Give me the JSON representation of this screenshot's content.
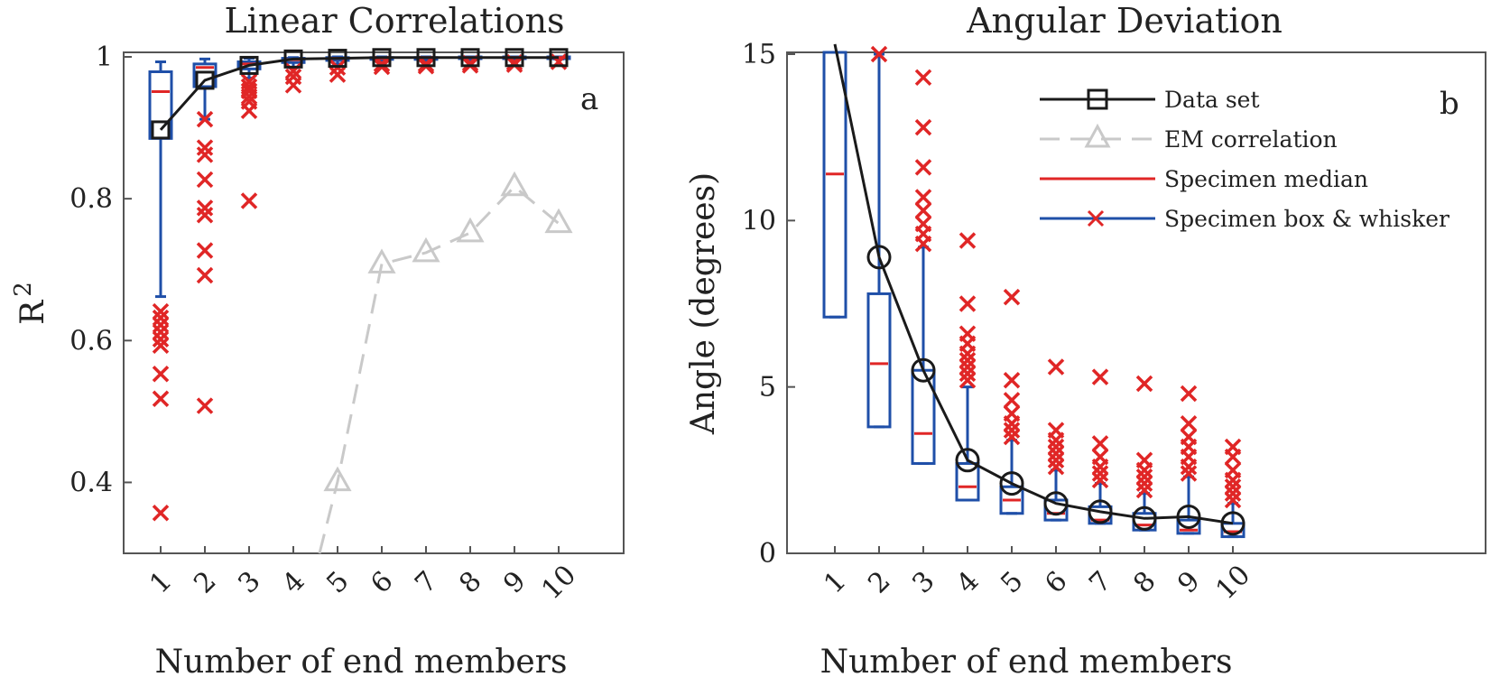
{
  "figure_title": "Linear Correlations / Angular Deviation",
  "chart_data": [
    {
      "type": "box",
      "panel": "a",
      "title": "Linear Correlations",
      "xlabel": "Number of end members",
      "ylabel": "R",
      "ylabel_sup": "2",
      "ylim": [
        0.3,
        1.0
      ],
      "yticks": [
        0.4,
        0.6,
        0.8,
        1
      ],
      "ytick_labels": [
        "0.4",
        "0.6",
        "0.8",
        "1"
      ],
      "categories": [
        "1",
        "2",
        "3",
        "4",
        "5",
        "6",
        "7",
        "8",
        "9",
        "10"
      ],
      "series": [
        {
          "name": "Data set",
          "values": [
            0.897,
            0.967,
            0.988,
            0.997,
            0.998,
            0.999,
            0.999,
            0.999,
            0.999,
            0.999
          ]
        },
        {
          "name": "EM correlation",
          "values": [
            null,
            null,
            null,
            null,
            0.401,
            0.708,
            0.724,
            0.752,
            0.817,
            0.765
          ]
        }
      ],
      "boxes": [
        {
          "q1": 0.885,
          "median": 0.951,
          "q3": 0.979,
          "wlo": 0.662,
          "whi": 0.993,
          "outliers": [
            0.641,
            0.632,
            0.622,
            0.612,
            0.602,
            0.593,
            0.553,
            0.518,
            0.357
          ]
        },
        {
          "q1": 0.958,
          "median": 0.985,
          "q3": 0.99,
          "wlo": 0.912,
          "whi": 0.997,
          "outliers": [
            0.912,
            0.872,
            0.862,
            0.827,
            0.787,
            0.777,
            0.727,
            0.692,
            0.508
          ]
        },
        {
          "q1": 0.983,
          "median": 0.99,
          "q3": 0.993,
          "wlo": 0.97,
          "whi": 0.998,
          "outliers": [
            0.965,
            0.958,
            0.952,
            0.944,
            0.937,
            0.924,
            0.797
          ]
        },
        {
          "q1": 0.992,
          "median": 0.996,
          "q3": 0.998,
          "wlo": 0.985,
          "whi": 0.999,
          "outliers": [
            0.98,
            0.972,
            0.96
          ]
        },
        {
          "q1": 0.995,
          "median": 0.998,
          "q3": 0.999,
          "wlo": 0.99,
          "whi": 1.0,
          "outliers": [
            0.985,
            0.975
          ]
        },
        {
          "q1": 0.997,
          "median": 0.998,
          "q3": 0.999,
          "wlo": 0.994,
          "whi": 1.0,
          "outliers": [
            0.99,
            0.986
          ]
        },
        {
          "q1": 0.997,
          "median": 0.999,
          "q3": 0.999,
          "wlo": 0.995,
          "whi": 1.0,
          "outliers": [
            0.99,
            0.987
          ]
        },
        {
          "q1": 0.998,
          "median": 0.999,
          "q3": 1.0,
          "wlo": 0.996,
          "whi": 1.0,
          "outliers": [
            0.991,
            0.988
          ]
        },
        {
          "q1": 0.998,
          "median": 0.999,
          "q3": 1.0,
          "wlo": 0.996,
          "whi": 1.0,
          "outliers": [
            0.992,
            0.989
          ]
        },
        {
          "q1": 0.998,
          "median": 0.999,
          "q3": 1.0,
          "wlo": 0.997,
          "whi": 1.0,
          "outliers": [
            0.993
          ]
        }
      ],
      "annotation": "a"
    },
    {
      "type": "box",
      "panel": "b",
      "title": "Angular Deviation",
      "xlabel": "Number of end members",
      "ylabel": "Angle (degrees)",
      "ylim": [
        0,
        15
      ],
      "yticks": [
        0,
        5,
        10,
        15
      ],
      "ytick_labels": [
        "0",
        "5",
        "10",
        "15"
      ],
      "categories": [
        "1",
        "2",
        "3",
        "4",
        "5",
        "6",
        "7",
        "8",
        "9",
        "10"
      ],
      "series": [
        {
          "name": "Data set",
          "values": [
            15.3,
            8.9,
            5.5,
            2.8,
            2.1,
            1.5,
            1.25,
            1.05,
            1.1,
            0.9
          ]
        }
      ],
      "boxes": [
        {
          "q1": 7.1,
          "median": 11.4,
          "q3": 15.5,
          "wlo": 7.1,
          "whi": 15.5,
          "outliers": []
        },
        {
          "q1": 3.8,
          "median": 5.7,
          "q3": 7.8,
          "wlo": 3.8,
          "whi": 15.0,
          "outliers": [
            15.0
          ]
        },
        {
          "q1": 2.7,
          "median": 3.6,
          "q3": 5.5,
          "wlo": 2.7,
          "whi": 9.2,
          "outliers": [
            14.3,
            12.8,
            11.6,
            10.7,
            10.3,
            9.9,
            9.6,
            9.3
          ]
        },
        {
          "q1": 1.6,
          "median": 2.0,
          "q3": 2.7,
          "wlo": 1.6,
          "whi": 5.0,
          "outliers": [
            9.4,
            7.5,
            6.6,
            6.3,
            6.0,
            5.8,
            5.6,
            5.4,
            5.2
          ]
        },
        {
          "q1": 1.2,
          "median": 1.6,
          "q3": 2.0,
          "wlo": 1.2,
          "whi": 3.4,
          "outliers": [
            7.7,
            5.2,
            4.6,
            4.2,
            3.9,
            3.7,
            3.5
          ]
        },
        {
          "q1": 1.0,
          "median": 1.2,
          "q3": 1.6,
          "wlo": 1.0,
          "whi": 2.5,
          "outliers": [
            5.6,
            3.7,
            3.4,
            3.2,
            3.0,
            2.8,
            2.6
          ]
        },
        {
          "q1": 0.9,
          "median": 1.0,
          "q3": 1.4,
          "wlo": 0.9,
          "whi": 2.1,
          "outliers": [
            5.3,
            3.3,
            2.9,
            2.6,
            2.4,
            2.2
          ]
        },
        {
          "q1": 0.7,
          "median": 0.85,
          "q3": 1.2,
          "wlo": 0.7,
          "whi": 1.8,
          "outliers": [
            5.1,
            2.8,
            2.5,
            2.3,
            2.1,
            1.9
          ]
        },
        {
          "q1": 0.6,
          "median": 0.7,
          "q3": 1.0,
          "wlo": 0.6,
          "whi": 2.3,
          "outliers": [
            4.8,
            3.9,
            3.5,
            3.2,
            2.9,
            2.6,
            2.4
          ]
        },
        {
          "q1": 0.5,
          "median": 0.65,
          "q3": 0.9,
          "wlo": 0.5,
          "whi": 1.5,
          "outliers": [
            3.2,
            2.9,
            2.5,
            2.2,
            2.0,
            1.8,
            1.6
          ]
        }
      ],
      "annotation": "b",
      "legend": {
        "placement": "top-right",
        "entries": [
          "Data set",
          "EM correlation",
          "Specimen median",
          "Specimen box & whisker"
        ]
      }
    }
  ],
  "colors": {
    "box": "#1f4fa8",
    "median": "#e02626",
    "outlier": "#e02626",
    "dataset": "#1a1a1a",
    "em": "#c9c9c9",
    "axes": "#555555"
  }
}
